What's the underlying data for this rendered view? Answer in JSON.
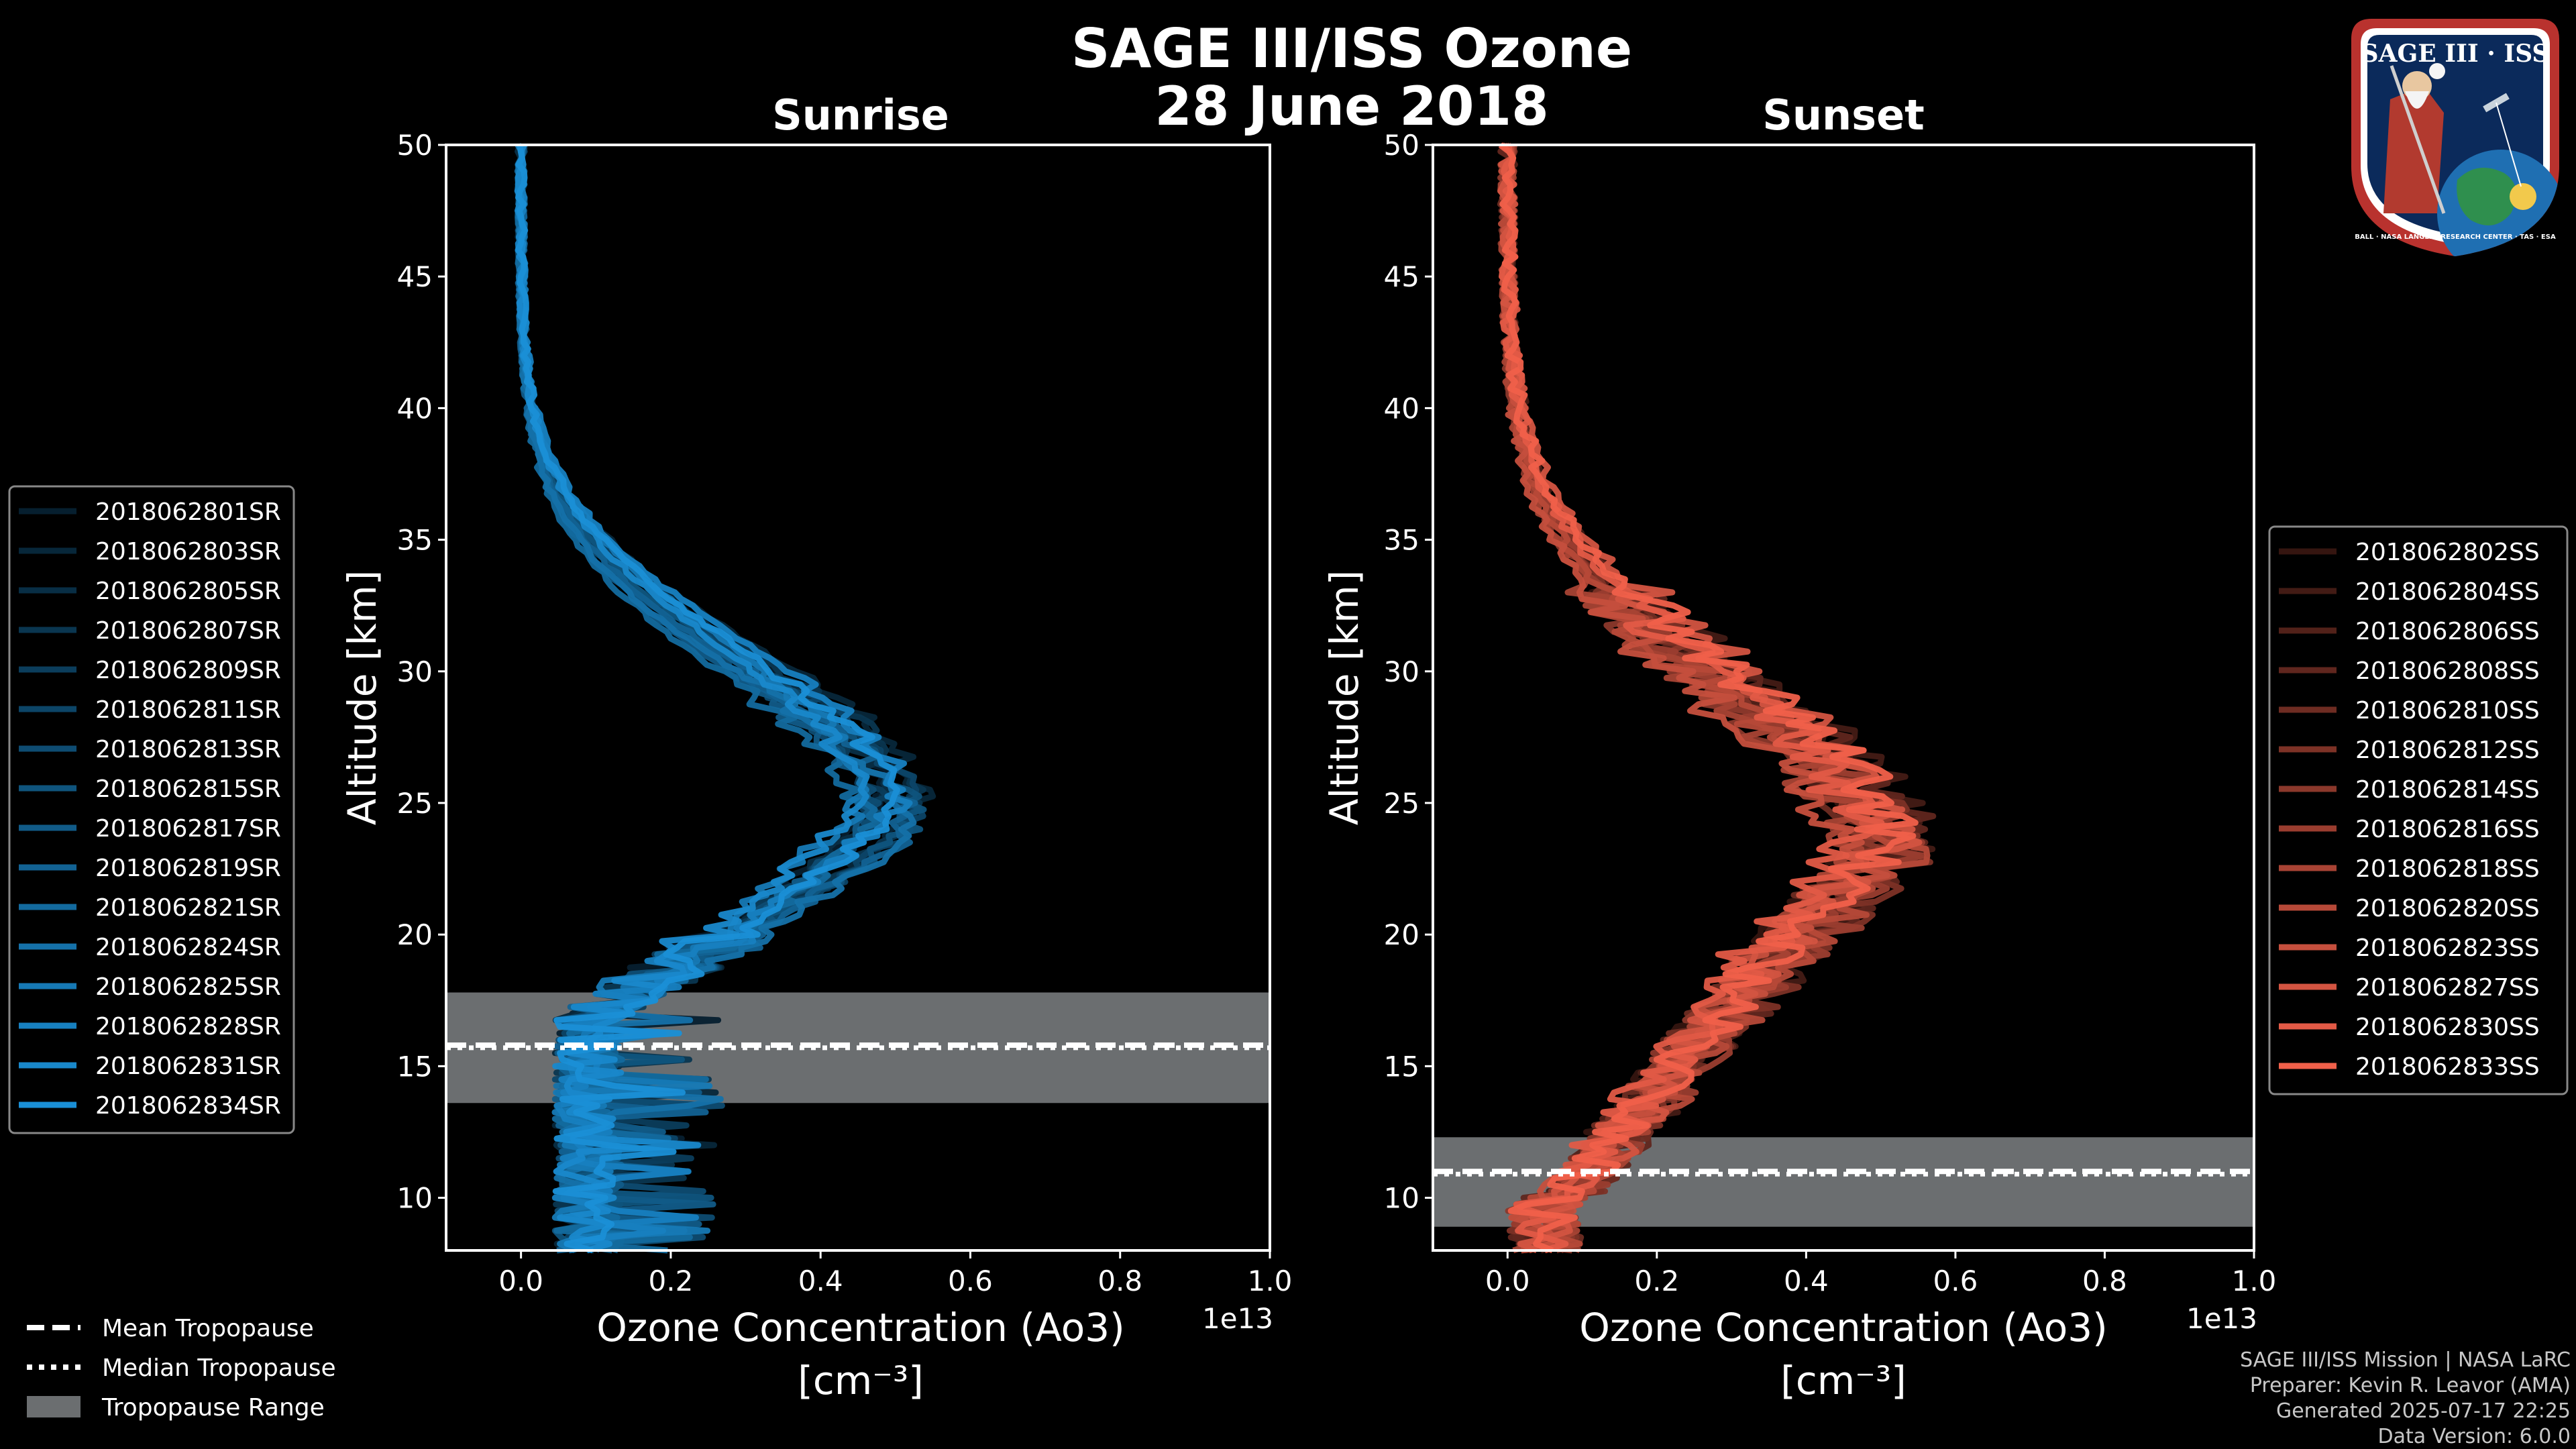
{
  "header": {
    "title_line1": "SAGE III/ISS Ozone",
    "title_line2": "28 June 2018"
  },
  "colors": {
    "background": "#000000",
    "sunrise": "#1a8fd6",
    "sunset": "#f0604a",
    "tropopause_band": "#6b6e70"
  },
  "logo": {
    "top_text": "SAGE III · ISS",
    "ring_text": "BALL · NASA LANGLEY RESEARCH CENTER · TAS · ESA",
    "icon": "sage-iii-iss-mission-patch"
  },
  "chart_data": [
    {
      "type": "line",
      "title": "Sunrise",
      "xlabel": "Ozone Concentration (Ao3)",
      "xunit": "[cm⁻³]",
      "ylabel": "Altitude [km]",
      "xlim": [
        -0.1,
        1.0
      ],
      "ylim": [
        8,
        50
      ],
      "x_ticks": [
        "0.0",
        "0.2",
        "0.4",
        "0.6",
        "0.8",
        "1.0"
      ],
      "y_ticks": [
        "10",
        "15",
        "20",
        "25",
        "30",
        "35",
        "40",
        "45",
        "50"
      ],
      "offset_label": "1e13",
      "peak_alt": 24.5,
      "peak_val": 0.48,
      "tropopause": {
        "mean": 15.8,
        "median": 15.7,
        "min": 13.6,
        "max": 17.8
      },
      "series": [
        "2018062801SR",
        "2018062803SR",
        "2018062805SR",
        "2018062807SR",
        "2018062809SR",
        "2018062811SR",
        "2018062813SR",
        "2018062815SR",
        "2018062817SR",
        "2018062819SR",
        "2018062821SR",
        "2018062824SR",
        "2018062825SR",
        "2018062828SR",
        "2018062831SR",
        "2018062834SR"
      ]
    },
    {
      "type": "line",
      "title": "Sunset",
      "xlabel": "Ozone Concentration (Ao3)",
      "xunit": "[cm⁻³]",
      "ylabel": "Altitude [km]",
      "xlim": [
        -0.1,
        1.0
      ],
      "ylim": [
        8,
        50
      ],
      "x_ticks": [
        "0.0",
        "0.2",
        "0.4",
        "0.6",
        "0.8",
        "1.0"
      ],
      "y_ticks": [
        "10",
        "15",
        "20",
        "25",
        "30",
        "35",
        "40",
        "45",
        "50"
      ],
      "offset_label": "1e13",
      "peak_alt": 23.0,
      "peak_val": 0.5,
      "tropopause": {
        "mean": 11.0,
        "median": 10.9,
        "min": 8.9,
        "max": 12.3
      },
      "series": [
        "2018062802SS",
        "2018062804SS",
        "2018062806SS",
        "2018062808SS",
        "2018062810SS",
        "2018062812SS",
        "2018062814SS",
        "2018062816SS",
        "2018062818SS",
        "2018062820SS",
        "2018062823SS",
        "2018062827SS",
        "2018062830SS",
        "2018062833SS"
      ]
    }
  ],
  "tropopause_legend": [
    {
      "label": "Mean Tropopause",
      "style": "dashed"
    },
    {
      "label": "Median Tropopause",
      "style": "dotted"
    },
    {
      "label": "Tropopause Range",
      "style": "patch"
    }
  ],
  "credits": [
    "SAGE III/ISS Mission | NASA LaRC",
    "Preparer: Kevin R. Leavor (AMA)",
    "Generated 2025-07-17 22:25",
    "Data Version: 6.0.0"
  ]
}
